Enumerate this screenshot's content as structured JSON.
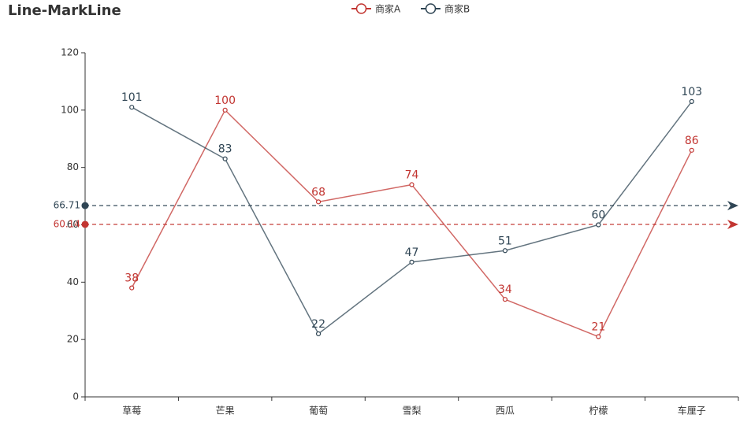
{
  "chart_data": {
    "type": "line",
    "title": "Line-MarkLine",
    "categories": [
      "草莓",
      "芒果",
      "葡萄",
      "雪梨",
      "西瓜",
      "柠檬",
      "车厘子"
    ],
    "series": [
      {
        "name": "商家A",
        "color": "#c23531",
        "values": [
          38,
          100,
          68,
          74,
          34,
          21,
          86
        ],
        "markline": 60.14
      },
      {
        "name": "商家B",
        "color": "#2f4554",
        "values": [
          101,
          83,
          22,
          47,
          51,
          60,
          103
        ],
        "markline": 66.71
      }
    ],
    "ylim": [
      0,
      120
    ],
    "yticks": [
      0,
      20,
      40,
      60,
      80,
      100,
      120
    ]
  }
}
